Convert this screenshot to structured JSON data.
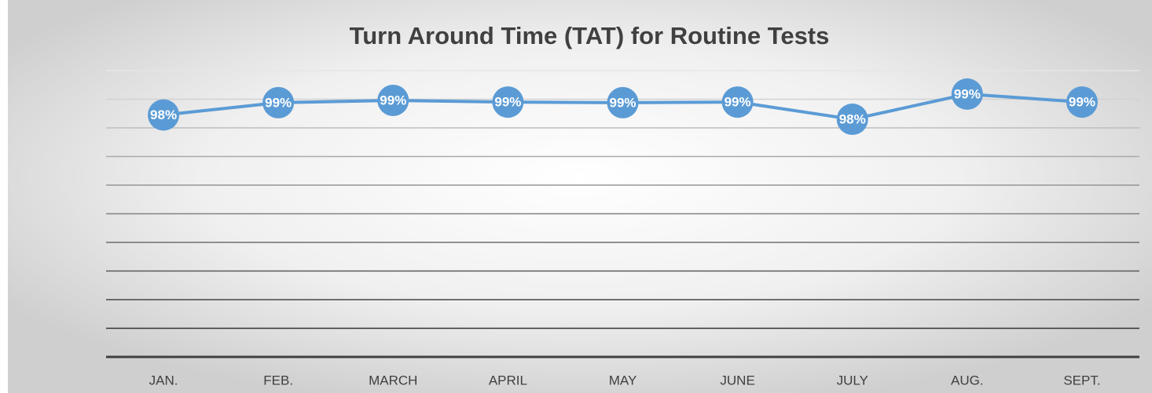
{
  "chart_data": {
    "type": "line",
    "title": "Turn Around Time (TAT) for Routine Tests",
    "categories": [
      "JAN.",
      "FEB.",
      "MARCH",
      "APRIL",
      "MAY",
      "JUNE",
      "JULY",
      "AUG.",
      "SEPT."
    ],
    "series": [
      {
        "name": "TAT",
        "color": "#5b9bd5",
        "values": [
          98.45,
          98.88,
          98.96,
          98.9,
          98.88,
          98.9,
          98.3,
          99.18,
          98.9
        ],
        "value_labels": [
          "98%",
          "99%",
          "99%",
          "99%",
          "99%",
          "99%",
          "98%",
          "99%",
          "99%"
        ]
      }
    ],
    "ylim": [
      90,
      100
    ],
    "yticks": [
      90,
      91,
      92,
      93,
      94,
      95,
      96,
      97,
      98,
      99,
      100
    ],
    "grid": true
  }
}
